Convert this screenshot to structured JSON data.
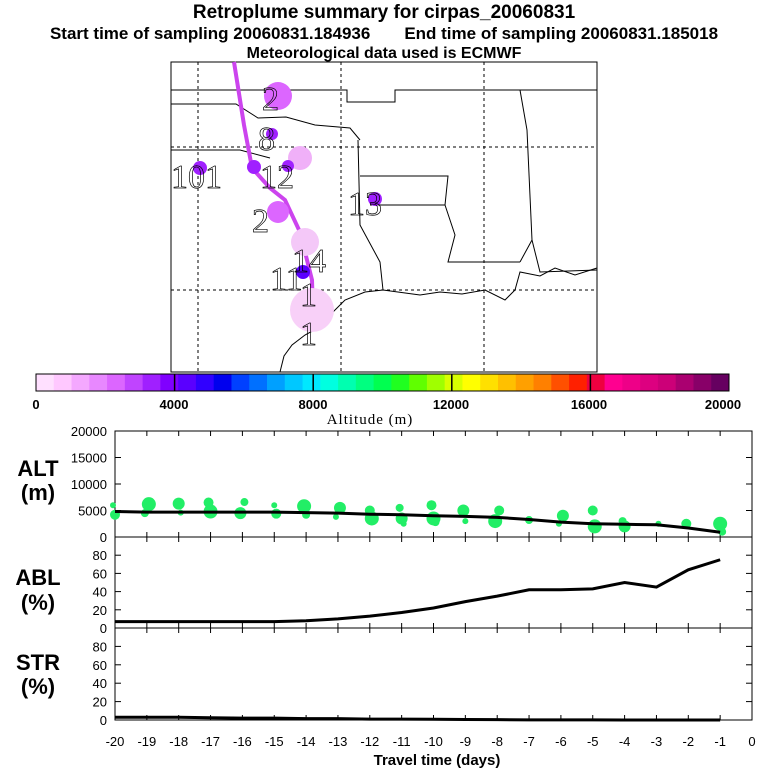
{
  "header": {
    "title": "Retroplume summary for cirpas_20060831",
    "start_label": "Start time of sampling 20060831.184936",
    "end_label": "End time of sampling 20060831.185018",
    "met_label": "Meteorological data used is ECMWF"
  },
  "colors": {
    "plume_magenta": "#cc44ee",
    "alt_dots": "#22ee66",
    "line": "#000000"
  },
  "map": {
    "day_labels": [
      "2",
      "8",
      "101",
      "12",
      "13",
      "2",
      "11",
      "14",
      "1",
      "1"
    ]
  },
  "colorbar": {
    "label": "Altitude (m)",
    "tick_labels": [
      "0",
      "4000",
      "8000",
      "12000",
      "16000",
      "20000"
    ],
    "min": 0,
    "max": 20000,
    "colors": [
      "#ffe0ff",
      "#ffc8ff",
      "#f4a8ff",
      "#e888ff",
      "#dc66ff",
      "#c044ff",
      "#a020ff",
      "#8000ff",
      "#5a00ff",
      "#3000ff",
      "#0000ee",
      "#0040ff",
      "#0070ff",
      "#00a0ff",
      "#00c8ff",
      "#00e8ff",
      "#00ffe0",
      "#00ffb0",
      "#00ff80",
      "#00ff50",
      "#20ff20",
      "#60ff00",
      "#a0ff00",
      "#d8ff00",
      "#ffff00",
      "#ffe000",
      "#ffc000",
      "#ffa000",
      "#ff8000",
      "#ff5000",
      "#ff2000",
      "#ee0040",
      "#ff0090",
      "#ee0088",
      "#dd0080",
      "#cc0078",
      "#aa0070",
      "#880068",
      "#660060"
    ]
  },
  "chart_data": [
    {
      "type": "scatter",
      "title": "ALT (m)",
      "ylabel": "ALT (m)",
      "xlabel": "Travel time (days)",
      "xlim": [
        -20,
        0
      ],
      "ylim": [
        0,
        20000
      ],
      "ytick_labels": [
        "0",
        "5000",
        "10000",
        "15000",
        "20000"
      ],
      "line": {
        "x": [
          -20,
          -19,
          -18,
          -17,
          -16,
          -15,
          -14,
          -13,
          -12,
          -11,
          -10,
          -9,
          -8,
          -7,
          -6,
          -5,
          -4,
          -3,
          -2,
          -1
        ],
        "y": [
          4800,
          4700,
          4700,
          4700,
          4700,
          4700,
          4600,
          4500,
          4300,
          4200,
          4000,
          3900,
          3700,
          3300,
          2800,
          2500,
          2400,
          2300,
          1700,
          900
        ]
      },
      "dots": {
        "x": [
          -20,
          -20,
          -19,
          -19,
          -18,
          -18,
          -17,
          -17,
          -16,
          -16,
          -15,
          -15,
          -14,
          -14,
          -13,
          -13,
          -12,
          -12,
          -11,
          -11,
          -11,
          -10,
          -10,
          -10,
          -9,
          -9,
          -8,
          -8,
          -7,
          -6,
          -6,
          -5,
          -5,
          -4,
          -4,
          -3,
          -2,
          -1,
          -1
        ],
        "y": [
          6000,
          4200,
          6200,
          4500,
          6300,
          4600,
          6500,
          4800,
          6600,
          4500,
          6000,
          4400,
          5800,
          4200,
          5500,
          3800,
          5000,
          3500,
          5500,
          3500,
          2500,
          6000,
          3500,
          2800,
          5000,
          3000,
          5000,
          3000,
          3200,
          4000,
          2500,
          5000,
          2000,
          3000,
          2000,
          2500,
          2500,
          2500,
          1000
        ]
      }
    },
    {
      "type": "line",
      "title": "ABL (%)",
      "ylabel": "ABL (%)",
      "xlabel": "Travel time (days)",
      "xlim": [
        -20,
        0
      ],
      "ylim": [
        0,
        100
      ],
      "ytick_labels": [
        "0",
        "20",
        "40",
        "60",
        "80"
      ],
      "x": [
        -20,
        -19,
        -18,
        -17,
        -16,
        -15,
        -14,
        -13,
        -12,
        -11,
        -10,
        -9,
        -8,
        -7,
        -6,
        -5,
        -4,
        -3,
        -2,
        -1
      ],
      "y": [
        7,
        7,
        7,
        7,
        7,
        7,
        8,
        10,
        13,
        17,
        22,
        29,
        35,
        42,
        42,
        43,
        50,
        45,
        64,
        75
      ]
    },
    {
      "type": "line",
      "title": "STR (%)",
      "ylabel": "STR (%)",
      "xlabel": "Travel time (days)",
      "xlim": [
        -20,
        0
      ],
      "ylim": [
        0,
        100
      ],
      "ytick_labels": [
        "0",
        "20",
        "40",
        "60",
        "80"
      ],
      "x": [
        -20,
        -19,
        -18,
        -17,
        -16,
        -15,
        -14,
        -13,
        -12,
        -11,
        -10,
        -9,
        -8,
        -7,
        -6,
        -5,
        -4,
        -3,
        -2,
        -1
      ],
      "y": [
        3,
        3,
        3,
        2.5,
        2,
        2,
        1.5,
        1.5,
        1,
        1,
        0.8,
        0.5,
        0.4,
        0.2,
        0.1,
        0.1,
        0,
        0,
        0,
        0
      ]
    }
  ],
  "xaxis": {
    "tick_labels": [
      "-20",
      "-19",
      "-18",
      "-17",
      "-16",
      "-15",
      "-14",
      "-13",
      "-12",
      "-11",
      "-10",
      "-9",
      "-8",
      "-7",
      "-6",
      "-5",
      "-4",
      "-3",
      "-2",
      "-1",
      "0"
    ],
    "label": "Travel time (days)"
  },
  "panels": {
    "alt_label_1": "ALT",
    "alt_label_2": "(m)",
    "abl_label_1": "ABL",
    "abl_label_2": "(%)",
    "str_label_1": "STR",
    "str_label_2": "(%)"
  }
}
